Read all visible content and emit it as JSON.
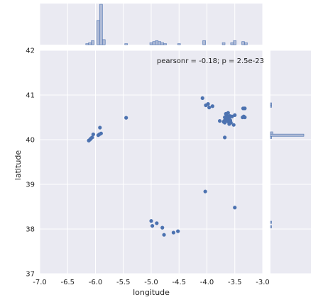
{
  "chart_data": {
    "type": "scatter",
    "kind": "jointplot",
    "xlabel": "longitude",
    "ylabel": "latitude",
    "xlim": [
      -7.0,
      -3.0
    ],
    "ylim": [
      37,
      42
    ],
    "xticks": [
      -7.0,
      -6.5,
      -6.0,
      -5.5,
      -5.0,
      -4.5,
      -4.0,
      -3.5,
      -3.0
    ],
    "yticks": [
      37,
      38,
      39,
      40,
      41,
      42
    ],
    "annotation": "pearsonr = -0.18; p = 2.5e-23",
    "grid": true,
    "colors": {
      "background": "#eaeaf2",
      "grid": "#ffffff",
      "point": "#4c72b0",
      "hist_fill": "#a7b5d3",
      "hist_edge": "#4c72b0"
    },
    "points": [
      {
        "x": -6.12,
        "y": 39.98
      },
      {
        "x": -6.1,
        "y": 40.0
      },
      {
        "x": -6.08,
        "y": 40.03
      },
      {
        "x": -6.06,
        "y": 40.05
      },
      {
        "x": -6.04,
        "y": 40.12
      },
      {
        "x": -5.95,
        "y": 40.1
      },
      {
        "x": -5.93,
        "y": 40.12
      },
      {
        "x": -5.9,
        "y": 40.14
      },
      {
        "x": -5.92,
        "y": 40.27
      },
      {
        "x": -5.45,
        "y": 40.49
      },
      {
        "x": -5.0,
        "y": 38.18
      },
      {
        "x": -4.98,
        "y": 38.07
      },
      {
        "x": -4.9,
        "y": 38.13
      },
      {
        "x": -4.8,
        "y": 38.03
      },
      {
        "x": -4.77,
        "y": 37.87
      },
      {
        "x": -4.6,
        "y": 37.92
      },
      {
        "x": -4.52,
        "y": 37.95
      },
      {
        "x": -4.08,
        "y": 40.93
      },
      {
        "x": -4.02,
        "y": 40.77
      },
      {
        "x": -3.98,
        "y": 40.8
      },
      {
        "x": -3.96,
        "y": 40.72
      },
      {
        "x": -3.9,
        "y": 40.75
      },
      {
        "x": -3.77,
        "y": 40.42
      },
      {
        "x": -3.68,
        "y": 40.05
      },
      {
        "x": -3.7,
        "y": 40.4
      },
      {
        "x": -3.69,
        "y": 40.42
      },
      {
        "x": -3.68,
        "y": 40.38
      },
      {
        "x": -3.67,
        "y": 40.45
      },
      {
        "x": -3.66,
        "y": 40.5
      },
      {
        "x": -3.65,
        "y": 40.55
      },
      {
        "x": -3.64,
        "y": 40.52
      },
      {
        "x": -3.63,
        "y": 40.48
      },
      {
        "x": -3.62,
        "y": 40.44
      },
      {
        "x": -3.61,
        "y": 40.4
      },
      {
        "x": -3.6,
        "y": 40.47
      },
      {
        "x": -3.59,
        "y": 40.53
      },
      {
        "x": -3.58,
        "y": 40.43
      },
      {
        "x": -3.57,
        "y": 40.38
      },
      {
        "x": -3.6,
        "y": 40.35
      },
      {
        "x": -3.55,
        "y": 40.52
      },
      {
        "x": -3.52,
        "y": 40.33
      },
      {
        "x": -3.5,
        "y": 40.55
      },
      {
        "x": -3.66,
        "y": 40.58
      },
      {
        "x": -3.62,
        "y": 40.6
      },
      {
        "x": -3.68,
        "y": 40.5
      },
      {
        "x": -3.64,
        "y": 40.42
      },
      {
        "x": -3.36,
        "y": 40.5
      },
      {
        "x": -3.34,
        "y": 40.52
      },
      {
        "x": -3.32,
        "y": 40.5
      },
      {
        "x": -3.35,
        "y": 40.7
      },
      {
        "x": -3.32,
        "y": 40.7
      },
      {
        "x": -4.03,
        "y": 38.84
      },
      {
        "x": -3.5,
        "y": 38.48
      }
    ],
    "x_histogram": {
      "bins": [
        {
          "x": -6.15,
          "count": 1
        },
        {
          "x": -6.1,
          "count": 2
        },
        {
          "x": -6.05,
          "count": 4
        },
        {
          "x": -5.95,
          "count": 24
        },
        {
          "x": -5.9,
          "count": 40
        },
        {
          "x": -5.85,
          "count": 5
        },
        {
          "x": -5.45,
          "count": 1
        },
        {
          "x": -5.0,
          "count": 2
        },
        {
          "x": -4.95,
          "count": 3
        },
        {
          "x": -4.9,
          "count": 4
        },
        {
          "x": -4.85,
          "count": 3
        },
        {
          "x": -4.8,
          "count": 2
        },
        {
          "x": -4.75,
          "count": 1
        },
        {
          "x": -4.5,
          "count": 1
        },
        {
          "x": -4.05,
          "count": 4
        },
        {
          "x": -3.7,
          "count": 2
        },
        {
          "x": -3.55,
          "count": 2
        },
        {
          "x": -3.5,
          "count": 4
        },
        {
          "x": -3.35,
          "count": 3
        },
        {
          "x": -3.3,
          "count": 2
        }
      ]
    },
    "y_histogram": {
      "bins": [
        {
          "y": 38.05,
          "count": 1
        },
        {
          "y": 38.15,
          "count": 1
        },
        {
          "y": 40.05,
          "count": 1
        },
        {
          "y": 40.1,
          "count": 28
        },
        {
          "y": 40.15,
          "count": 2
        },
        {
          "y": 40.75,
          "count": 1
        },
        {
          "y": 40.8,
          "count": 1
        }
      ]
    }
  }
}
